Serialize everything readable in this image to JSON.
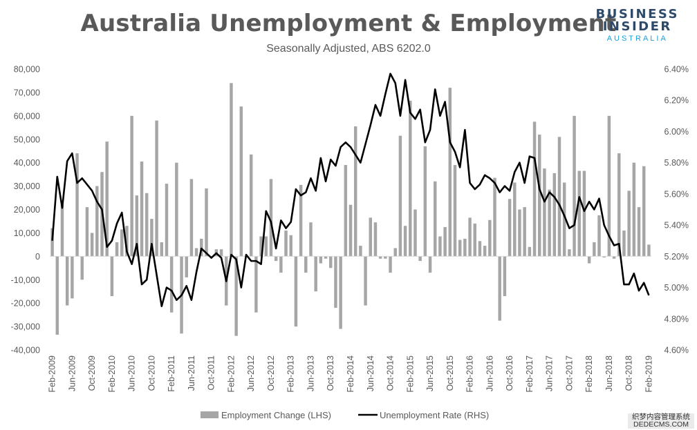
{
  "title": "Australia Unemployment & Employment",
  "subtitle": "Seasonally Adjusted, ABS 6202.0",
  "logo": {
    "line1": "BUSINESS",
    "line2": "INSIDER",
    "line3": "AUSTRALIA"
  },
  "watermark": {
    "line1": "织梦内容管理系统",
    "line2": "DEDECMS.COM"
  },
  "colors": {
    "bars": "#a6a6a6",
    "line": "#000000",
    "text": "#595959",
    "logo_dark": "#2e4a6b",
    "logo_blue": "#1b9fd8"
  },
  "chart_data": {
    "type": "bar+line",
    "title": "Australia Unemployment & Employment",
    "subtitle": "Seasonally Adjusted, ABS 6202.0",
    "x": [
      "Feb-2009",
      "Mar-2009",
      "Apr-2009",
      "May-2009",
      "Jun-2009",
      "Jul-2009",
      "Aug-2009",
      "Sep-2009",
      "Oct-2009",
      "Nov-2009",
      "Dec-2009",
      "Jan-2010",
      "Feb-2010",
      "Mar-2010",
      "Apr-2010",
      "May-2010",
      "Jun-2010",
      "Jul-2010",
      "Aug-2010",
      "Sep-2010",
      "Oct-2010",
      "Nov-2010",
      "Dec-2010",
      "Jan-2011",
      "Feb-2011",
      "Mar-2011",
      "Apr-2011",
      "May-2011",
      "Jun-2011",
      "Jul-2011",
      "Aug-2011",
      "Sep-2011",
      "Oct-2011",
      "Nov-2011",
      "Dec-2011",
      "Jan-2012",
      "Feb-2012",
      "Mar-2012",
      "Apr-2012",
      "May-2012",
      "Jun-2012",
      "Jul-2012",
      "Aug-2012",
      "Sep-2012",
      "Oct-2012",
      "Nov-2012",
      "Dec-2012",
      "Jan-2013",
      "Feb-2013",
      "Mar-2013",
      "Apr-2013",
      "May-2013",
      "Jun-2013",
      "Jul-2013",
      "Aug-2013",
      "Sep-2013",
      "Oct-2013",
      "Nov-2013",
      "Dec-2013",
      "Jan-2014",
      "Feb-2014",
      "Mar-2014",
      "Apr-2014",
      "May-2014",
      "Jun-2014",
      "Jul-2014",
      "Aug-2014",
      "Sep-2014",
      "Oct-2014",
      "Nov-2014",
      "Dec-2014",
      "Jan-2015",
      "Feb-2015",
      "Mar-2015",
      "Apr-2015",
      "May-2015",
      "Jun-2015",
      "Jul-2015",
      "Aug-2015",
      "Sep-2015",
      "Oct-2015",
      "Nov-2015",
      "Dec-2015",
      "Jan-2016",
      "Feb-2016",
      "Mar-2016",
      "Apr-2016",
      "May-2016",
      "Jun-2016",
      "Jul-2016",
      "Aug-2016",
      "Sep-2016",
      "Oct-2016",
      "Nov-2016",
      "Dec-2016",
      "Jan-2017",
      "Feb-2017",
      "Mar-2017",
      "Apr-2017",
      "May-2017",
      "Jun-2017",
      "Jul-2017",
      "Aug-2017",
      "Sep-2017",
      "Oct-2017",
      "Nov-2017",
      "Dec-2017",
      "Jan-2018",
      "Feb-2018",
      "Mar-2018",
      "Apr-2018",
      "May-2018",
      "Jun-2018",
      "Jul-2018",
      "Aug-2018",
      "Sep-2018",
      "Oct-2018",
      "Nov-2018",
      "Dec-2018",
      "Jan-2019",
      "Feb-2019"
    ],
    "x_tick_labels": [
      "Feb-2009",
      "Jun-2009",
      "Oct-2009",
      "Feb-2010",
      "Jun-2010",
      "Oct-2010",
      "Feb-2011",
      "Jun-2011",
      "Oct-2011",
      "Feb-2012",
      "Jun-2012",
      "Oct-2012",
      "Feb-2013",
      "Jun-2013",
      "Oct-2013",
      "Feb-2014",
      "Jun-2014",
      "Oct-2014",
      "Feb-2015",
      "Jun-2015",
      "Oct-2015",
      "Feb-2016",
      "Jun-2016",
      "Oct-2016",
      "Feb-2017",
      "Jun-2017",
      "Oct-2017",
      "Feb-2018",
      "Jun-2018",
      "Oct-2018",
      "Feb-2019"
    ],
    "y_left": {
      "min": -40000,
      "max": 80000,
      "step": 10000,
      "tick_labels": [
        "-40,000",
        "-30,000",
        "-20,000",
        "-10,000",
        "0",
        "10,000",
        "20,000",
        "30,000",
        "40,000",
        "50,000",
        "60,000",
        "70,000",
        "80,000"
      ]
    },
    "y_right": {
      "min": 4.6,
      "max": 6.4,
      "step": 0.2,
      "tick_labels": [
        "4.60%",
        "4.80%",
        "5.00%",
        "5.20%",
        "5.40%",
        "5.60%",
        "5.80%",
        "6.00%",
        "6.20%",
        "6.40%"
      ]
    },
    "grid": false,
    "legend_position": "bottom",
    "series": [
      {
        "name": "Employment Change (LHS)",
        "type": "bar",
        "axis": "left",
        "values": [
          12000,
          -33500,
          22000,
          -21000,
          -18000,
          44000,
          -10000,
          21000,
          10000,
          30000,
          36000,
          49000,
          -17000,
          6000,
          11500,
          13000,
          60000,
          26000,
          40500,
          27000,
          16000,
          58000,
          6000,
          31000,
          -24000,
          40000,
          -33000,
          -9000,
          33000,
          3500,
          7500,
          29000,
          0,
          3000,
          3000,
          -21000,
          74000,
          -34000,
          64000,
          0,
          43500,
          -24000,
          8500,
          8500,
          33000,
          -2000,
          -7000,
          11000,
          9000,
          -30000,
          30500,
          -7000,
          14500,
          -15000,
          -3000,
          -1000,
          -5000,
          -22000,
          -31000,
          39000,
          22000,
          55500,
          4500,
          -21000,
          16500,
          14500,
          -1000,
          -1000,
          -7000,
          3500,
          51500,
          13000,
          66500,
          20000,
          -2000,
          47000,
          -7000,
          32000,
          8500,
          12500,
          72000,
          39000,
          7000,
          7500,
          16500,
          14000,
          6500,
          4500,
          15500,
          33500,
          -27500,
          -17000,
          24500,
          31500,
          20000,
          21000,
          4000,
          57500,
          52000,
          37500,
          28500,
          35500,
          51000,
          31500,
          3000,
          60000,
          36500,
          36500,
          -3000,
          6000,
          17500,
          -500,
          60000,
          -1000,
          44000,
          11000,
          28000,
          40000,
          21000,
          38500,
          5000
        ]
      },
      {
        "name": "Unemployment Rate (RHS)",
        "type": "line",
        "axis": "right",
        "values": [
          5.3,
          5.71,
          5.51,
          5.81,
          5.86,
          5.67,
          5.7,
          5.66,
          5.62,
          5.55,
          5.5,
          5.26,
          5.3,
          5.41,
          5.48,
          5.23,
          5.15,
          5.28,
          5.02,
          5.05,
          5.28,
          5.08,
          4.88,
          5.0,
          4.98,
          4.92,
          4.95,
          5.01,
          4.92,
          5.1,
          5.25,
          5.22,
          5.19,
          5.22,
          5.19,
          5.04,
          5.21,
          5.18,
          5.0,
          5.21,
          5.17,
          5.17,
          5.15,
          5.49,
          5.42,
          5.25,
          5.43,
          5.38,
          5.42,
          5.63,
          5.59,
          5.61,
          5.7,
          5.62,
          5.83,
          5.68,
          5.82,
          5.78,
          5.9,
          5.93,
          5.9,
          5.85,
          5.8,
          5.92,
          6.04,
          6.17,
          6.1,
          6.24,
          6.37,
          6.31,
          6.1,
          6.33,
          6.12,
          6.08,
          6.14,
          5.93,
          6.01,
          6.27,
          6.1,
          6.19,
          5.93,
          5.87,
          5.77,
          6.01,
          5.67,
          5.63,
          5.66,
          5.72,
          5.7,
          5.67,
          5.61,
          5.65,
          5.62,
          5.74,
          5.8,
          5.67,
          5.84,
          5.83,
          5.63,
          5.55,
          5.61,
          5.58,
          5.53,
          5.46,
          5.38,
          5.4,
          5.58,
          5.49,
          5.55,
          5.5,
          5.57,
          5.4,
          5.33,
          5.27,
          5.28,
          5.02,
          5.02,
          5.09,
          4.98,
          5.03,
          4.95
        ]
      }
    ]
  }
}
